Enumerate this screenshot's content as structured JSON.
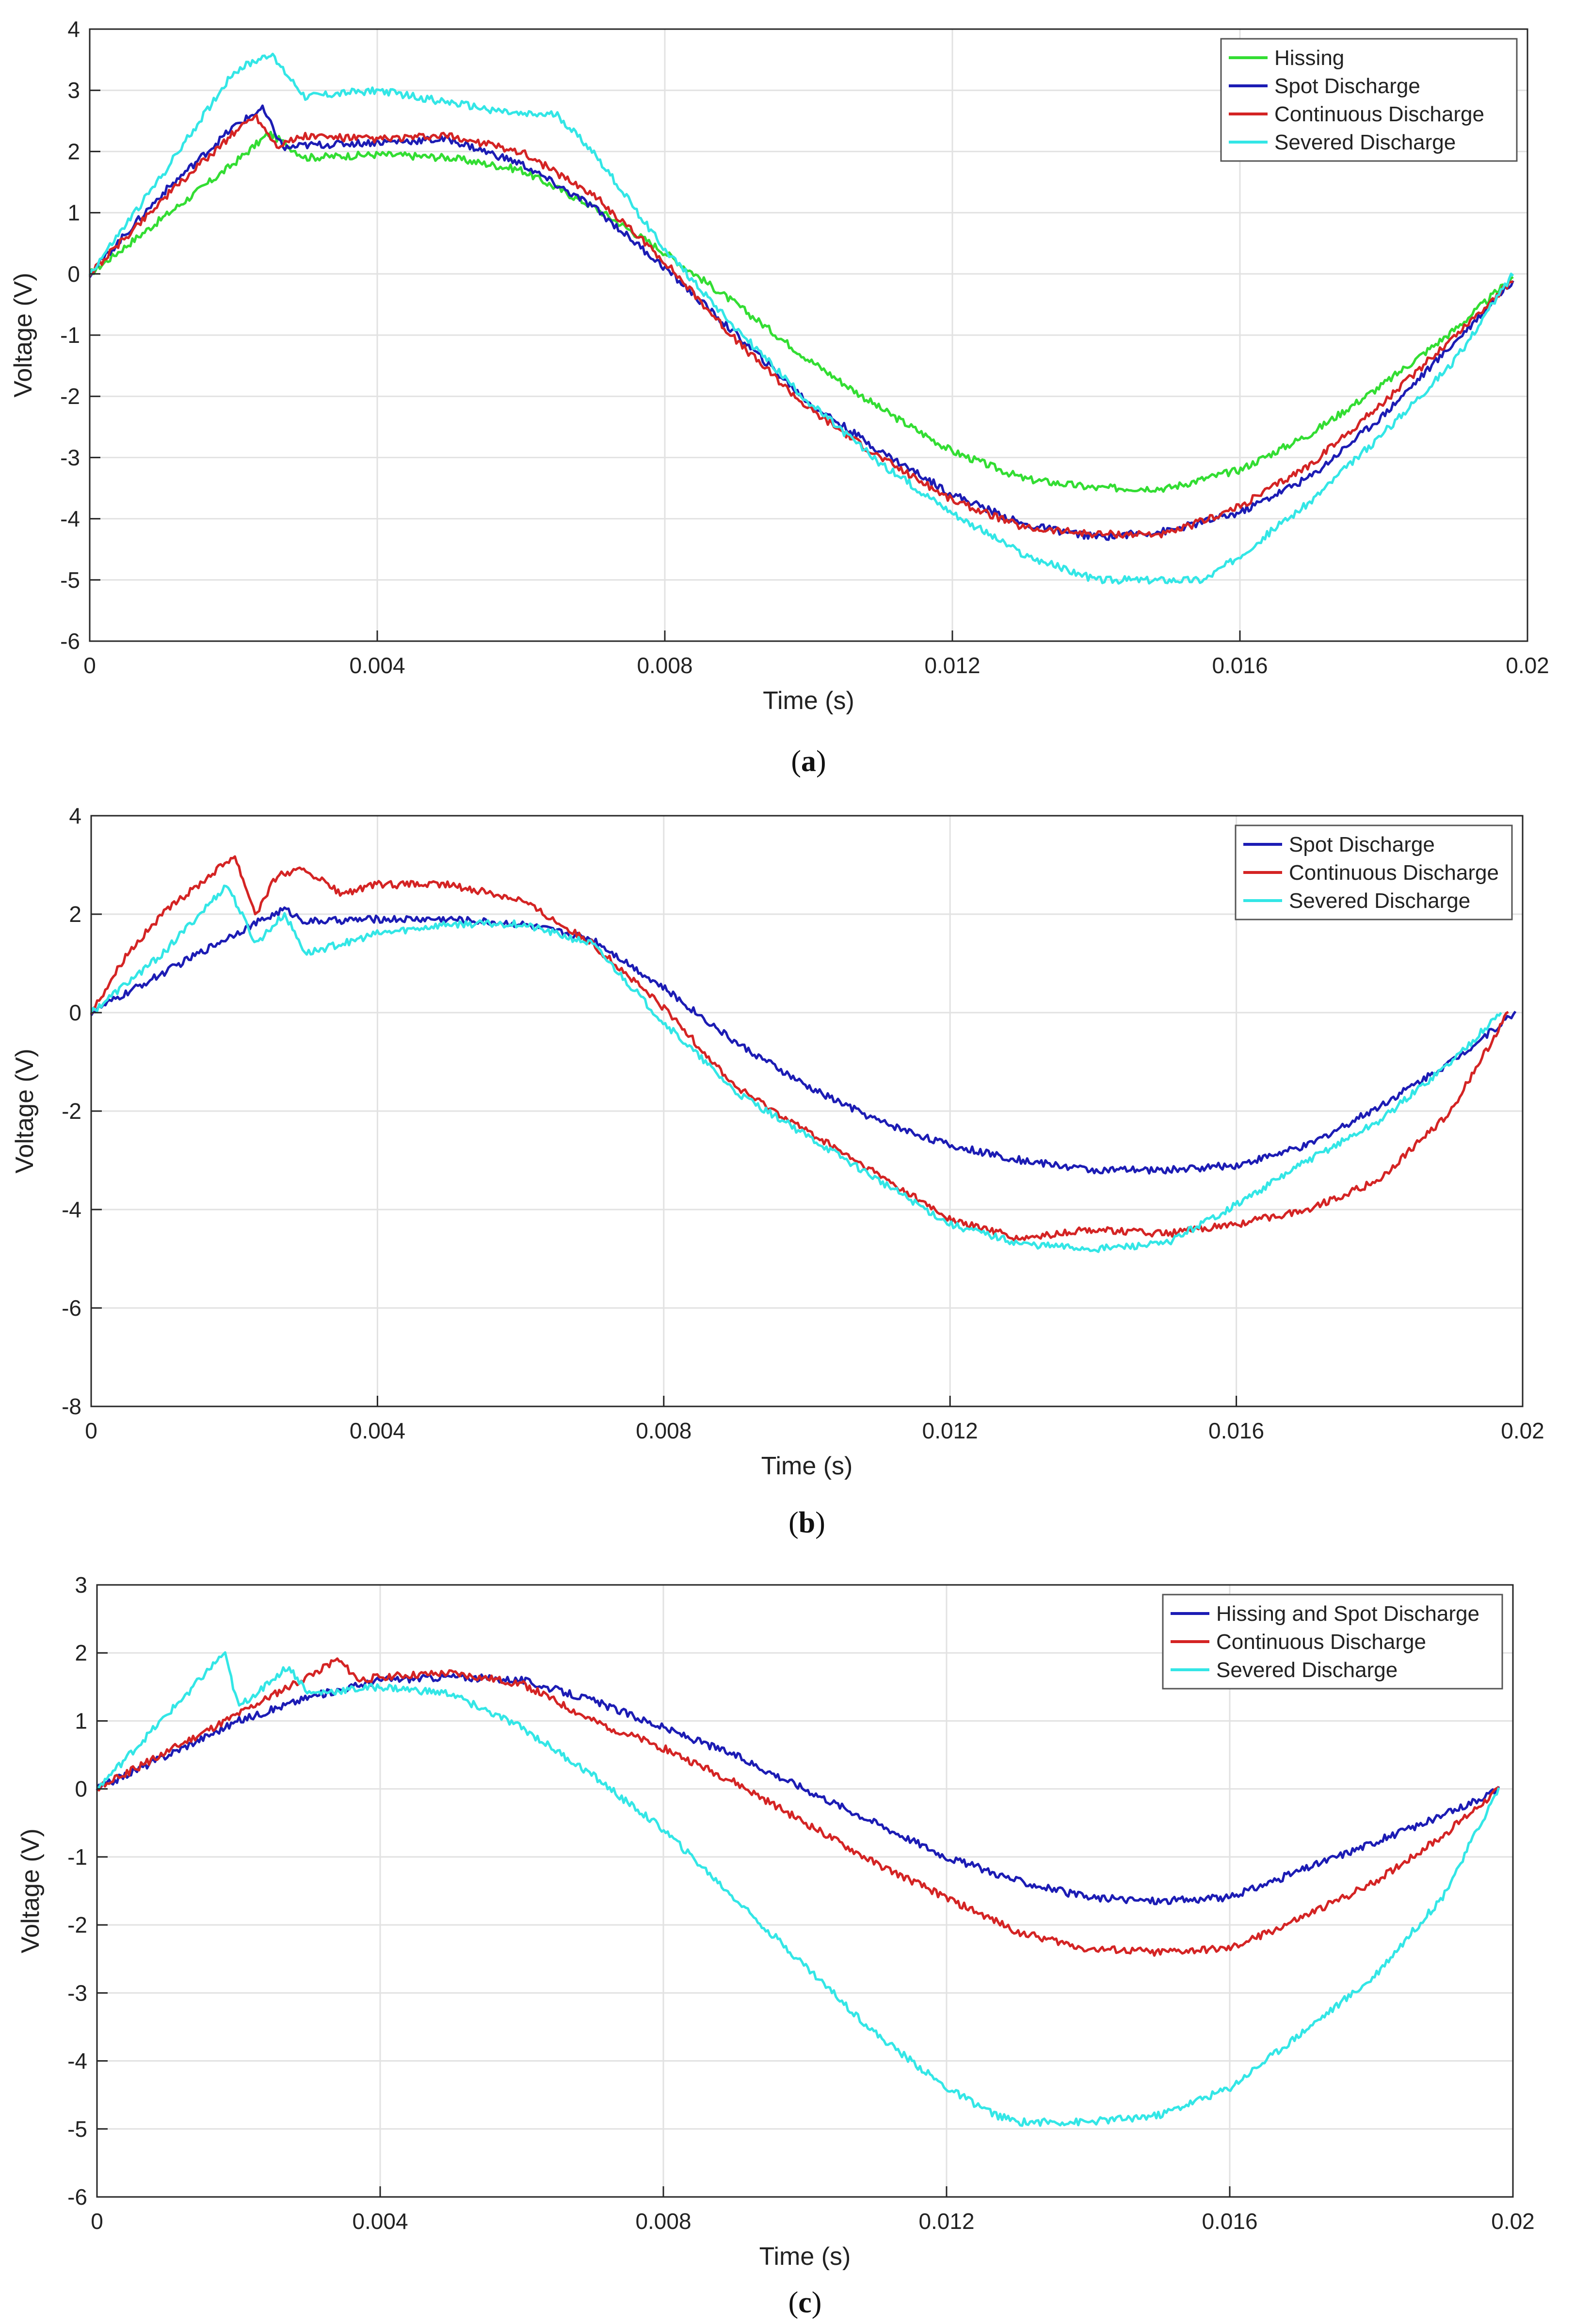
{
  "colors": {
    "hissing": "#33dd33",
    "spot": "#1c1cb4",
    "continuous": "#d42424",
    "severed": "#33e6e6",
    "grid": "#e2e2e2",
    "axis": "#262626"
  },
  "chart_data": [
    {
      "type": "line",
      "panel_label": "a",
      "xlabel": "Time (s)",
      "ylabel": "Voltage (V)",
      "xlim": [
        0,
        0.02
      ],
      "ylim": [
        -6,
        4
      ],
      "x_ticks": [
        0,
        0.004,
        0.008,
        0.012,
        0.016,
        0.02
      ],
      "x_tick_labels": [
        "0",
        "0.004",
        "0.008",
        "0.012",
        "0.016",
        "0.02"
      ],
      "y_ticks": [
        -6,
        -5,
        -4,
        -3,
        -2,
        -1,
        0,
        1,
        2,
        3,
        4
      ],
      "y_tick_labels": [
        "-6",
        "-5",
        "-4",
        "-3",
        "-2",
        "-1",
        "0",
        "1",
        "2",
        "3",
        "4"
      ],
      "grid": true,
      "legend_position": "top-right",
      "series": [
        {
          "name": "Hissing",
          "color": "#33dd33",
          "x": [
            0,
            0.001,
            0.002,
            0.0025,
            0.003,
            0.004,
            0.005,
            0.006,
            0.007,
            0.008,
            0.009,
            0.01,
            0.011,
            0.012,
            0.013,
            0.014,
            0.015,
            0.016,
            0.017,
            0.018,
            0.019,
            0.0198
          ],
          "y": [
            0,
            0.9,
            1.8,
            2.3,
            1.9,
            1.95,
            1.9,
            1.7,
            1.1,
            0.35,
            -0.5,
            -1.4,
            -2.2,
            -2.9,
            -3.35,
            -3.5,
            -3.5,
            -3.2,
            -2.6,
            -1.8,
            -0.9,
            -0.05
          ]
        },
        {
          "name": "Spot Discharge",
          "color": "#1c1cb4",
          "x": [
            0,
            0.001,
            0.002,
            0.0024,
            0.0027,
            0.003,
            0.004,
            0.005,
            0.006,
            0.007,
            0.008,
            0.009,
            0.01,
            0.011,
            0.012,
            0.013,
            0.014,
            0.015,
            0.016,
            0.017,
            0.018,
            0.019,
            0.0198
          ],
          "y": [
            0,
            1.3,
            2.4,
            2.7,
            2.05,
            2.1,
            2.15,
            2.2,
            1.8,
            1.1,
            0.1,
            -1.0,
            -2.1,
            -2.9,
            -3.6,
            -4.1,
            -4.3,
            -4.2,
            -3.9,
            -3.3,
            -2.3,
            -1.1,
            -0.1
          ]
        },
        {
          "name": "Continuous Discharge",
          "color": "#d42424",
          "x": [
            0,
            0.001,
            0.002,
            0.0023,
            0.0026,
            0.003,
            0.004,
            0.005,
            0.006,
            0.007,
            0.008,
            0.009,
            0.01,
            0.011,
            0.012,
            0.013,
            0.014,
            0.015,
            0.016,
            0.017,
            0.018,
            0.019,
            0.0198
          ],
          "y": [
            0,
            1.2,
            2.3,
            2.6,
            2.1,
            2.25,
            2.2,
            2.25,
            2.0,
            1.3,
            0.2,
            -1.1,
            -2.2,
            -3.0,
            -3.7,
            -4.15,
            -4.25,
            -4.25,
            -3.8,
            -3.1,
            -2.1,
            -1.0,
            -0.1
          ]
        },
        {
          "name": "Severed Discharge",
          "color": "#33e6e6",
          "x": [
            0,
            0.001,
            0.002,
            0.0025,
            0.003,
            0.004,
            0.005,
            0.006,
            0.0065,
            0.007,
            0.008,
            0.009,
            0.01,
            0.011,
            0.012,
            0.013,
            0.014,
            0.015,
            0.0155,
            0.016,
            0.017,
            0.018,
            0.019,
            0.0198
          ],
          "y": [
            0,
            1.6,
            3.3,
            3.6,
            2.9,
            3.0,
            2.8,
            2.6,
            2.6,
            2.0,
            0.4,
            -0.9,
            -2.1,
            -3.1,
            -3.9,
            -4.6,
            -5.0,
            -5.0,
            -5.0,
            -4.6,
            -3.7,
            -2.6,
            -1.4,
            0
          ]
        }
      ]
    },
    {
      "type": "line",
      "panel_label": "b",
      "xlabel": "Time (s)",
      "ylabel": "Voltage (V)",
      "xlim": [
        0,
        0.02
      ],
      "ylim": [
        -8,
        4
      ],
      "x_ticks": [
        0,
        0.004,
        0.008,
        0.012,
        0.016,
        0.02
      ],
      "x_tick_labels": [
        "0",
        "0.004",
        "0.008",
        "0.012",
        "0.016",
        "0.02"
      ],
      "y_ticks": [
        -8,
        -6,
        -4,
        -2,
        0,
        2,
        4
      ],
      "y_tick_labels": [
        "-8",
        "-6",
        "-4",
        "-2",
        "0",
        "2",
        "4"
      ],
      "grid": true,
      "legend_position": "top-right",
      "series": [
        {
          "name": "Spot Discharge",
          "color": "#1c1cb4",
          "x": [
            0,
            0.001,
            0.002,
            0.0027,
            0.003,
            0.004,
            0.005,
            0.006,
            0.007,
            0.008,
            0.009,
            0.01,
            0.011,
            0.012,
            0.013,
            0.014,
            0.015,
            0.016,
            0.017,
            0.018,
            0.019,
            0.0199
          ],
          "y": [
            0,
            0.8,
            1.6,
            2.1,
            1.85,
            1.9,
            1.9,
            1.8,
            1.5,
            0.5,
            -0.6,
            -1.5,
            -2.2,
            -2.7,
            -3.0,
            -3.2,
            -3.2,
            -3.1,
            -2.7,
            -1.9,
            -1.0,
            0
          ]
        },
        {
          "name": "Continuous Discharge",
          "color": "#d42424",
          "x": [
            0,
            0.0005,
            0.001,
            0.002,
            0.0023,
            0.0026,
            0.003,
            0.0035,
            0.004,
            0.005,
            0.006,
            0.007,
            0.008,
            0.009,
            0.01,
            0.011,
            0.012,
            0.013,
            0.014,
            0.015,
            0.016,
            0.017,
            0.018,
            0.019,
            0.0198
          ],
          "y": [
            0,
            1.2,
            2.0,
            3.2,
            2.0,
            2.8,
            2.9,
            2.4,
            2.6,
            2.6,
            2.3,
            1.4,
            0.1,
            -1.5,
            -2.4,
            -3.3,
            -4.2,
            -4.6,
            -4.4,
            -4.5,
            -4.3,
            -4.0,
            -3.4,
            -2.0,
            0
          ]
        },
        {
          "name": "Severed Discharge",
          "color": "#33e6e6",
          "x": [
            0,
            0.001,
            0.0019,
            0.0023,
            0.0027,
            0.003,
            0.004,
            0.005,
            0.006,
            0.007,
            0.008,
            0.009,
            0.01,
            0.011,
            0.012,
            0.013,
            0.014,
            0.015,
            0.016,
            0.017,
            0.018,
            0.019,
            0.0197
          ],
          "y": [
            0,
            1.2,
            2.6,
            1.4,
            2.0,
            1.2,
            1.6,
            1.8,
            1.8,
            1.4,
            -0.2,
            -1.6,
            -2.5,
            -3.4,
            -4.3,
            -4.7,
            -4.8,
            -4.7,
            -3.9,
            -3.0,
            -2.2,
            -1.0,
            0
          ]
        }
      ]
    },
    {
      "type": "line",
      "panel_label": "c",
      "xlabel": "Time (s)",
      "ylabel": "Voltage (V)",
      "xlim": [
        0,
        0.02
      ],
      "ylim": [
        -6,
        3
      ],
      "x_ticks": [
        0,
        0.004,
        0.008,
        0.012,
        0.016,
        0.02
      ],
      "x_tick_labels": [
        "0",
        "0.004",
        "0.008",
        "0.012",
        "0.016",
        "0.02"
      ],
      "y_ticks": [
        -6,
        -5,
        -4,
        -3,
        -2,
        -1,
        0,
        1,
        2,
        3
      ],
      "y_tick_labels": [
        "-6",
        "-5",
        "-4",
        "-3",
        "-2",
        "-1",
        "0",
        "1",
        "2",
        "3"
      ],
      "grid": true,
      "legend_position": "top-right",
      "series": [
        {
          "name": "Hissing and Spot Discharge",
          "color": "#1c1cb4",
          "x": [
            0,
            0.001,
            0.002,
            0.003,
            0.004,
            0.005,
            0.006,
            0.007,
            0.008,
            0.009,
            0.01,
            0.011,
            0.012,
            0.013,
            0.014,
            0.015,
            0.016,
            0.017,
            0.018,
            0.019,
            0.0198
          ],
          "y": [
            0,
            0.5,
            1.0,
            1.35,
            1.6,
            1.65,
            1.6,
            1.3,
            0.9,
            0.5,
            0.0,
            -0.5,
            -1.0,
            -1.35,
            -1.6,
            -1.65,
            -1.6,
            -1.2,
            -0.8,
            -0.4,
            0
          ]
        },
        {
          "name": "Continuous Discharge",
          "color": "#d42424",
          "x": [
            0,
            0.001,
            0.002,
            0.0034,
            0.0037,
            0.004,
            0.005,
            0.006,
            0.007,
            0.008,
            0.009,
            0.01,
            0.011,
            0.012,
            0.013,
            0.014,
            0.015,
            0.016,
            0.017,
            0.018,
            0.019,
            0.0198
          ],
          "y": [
            0,
            0.55,
            1.1,
            1.9,
            1.6,
            1.65,
            1.7,
            1.55,
            1.0,
            0.6,
            0.1,
            -0.5,
            -1.1,
            -1.6,
            -2.1,
            -2.35,
            -2.4,
            -2.35,
            -1.9,
            -1.4,
            -0.7,
            0
          ]
        },
        {
          "name": "Severed Discharge",
          "color": "#33e6e6",
          "x": [
            0,
            0.001,
            0.0018,
            0.002,
            0.0027,
            0.003,
            0.004,
            0.005,
            0.006,
            0.007,
            0.008,
            0.009,
            0.01,
            0.011,
            0.012,
            0.0127,
            0.013,
            0.014,
            0.015,
            0.016,
            0.017,
            0.018,
            0.019,
            0.0198
          ],
          "y": [
            0,
            1.1,
            2.0,
            1.2,
            1.8,
            1.4,
            1.5,
            1.4,
            0.9,
            0.2,
            -0.6,
            -1.6,
            -2.6,
            -3.6,
            -4.4,
            -4.8,
            -4.9,
            -4.9,
            -4.8,
            -4.4,
            -3.6,
            -2.8,
            -1.6,
            0
          ]
        }
      ]
    }
  ]
}
